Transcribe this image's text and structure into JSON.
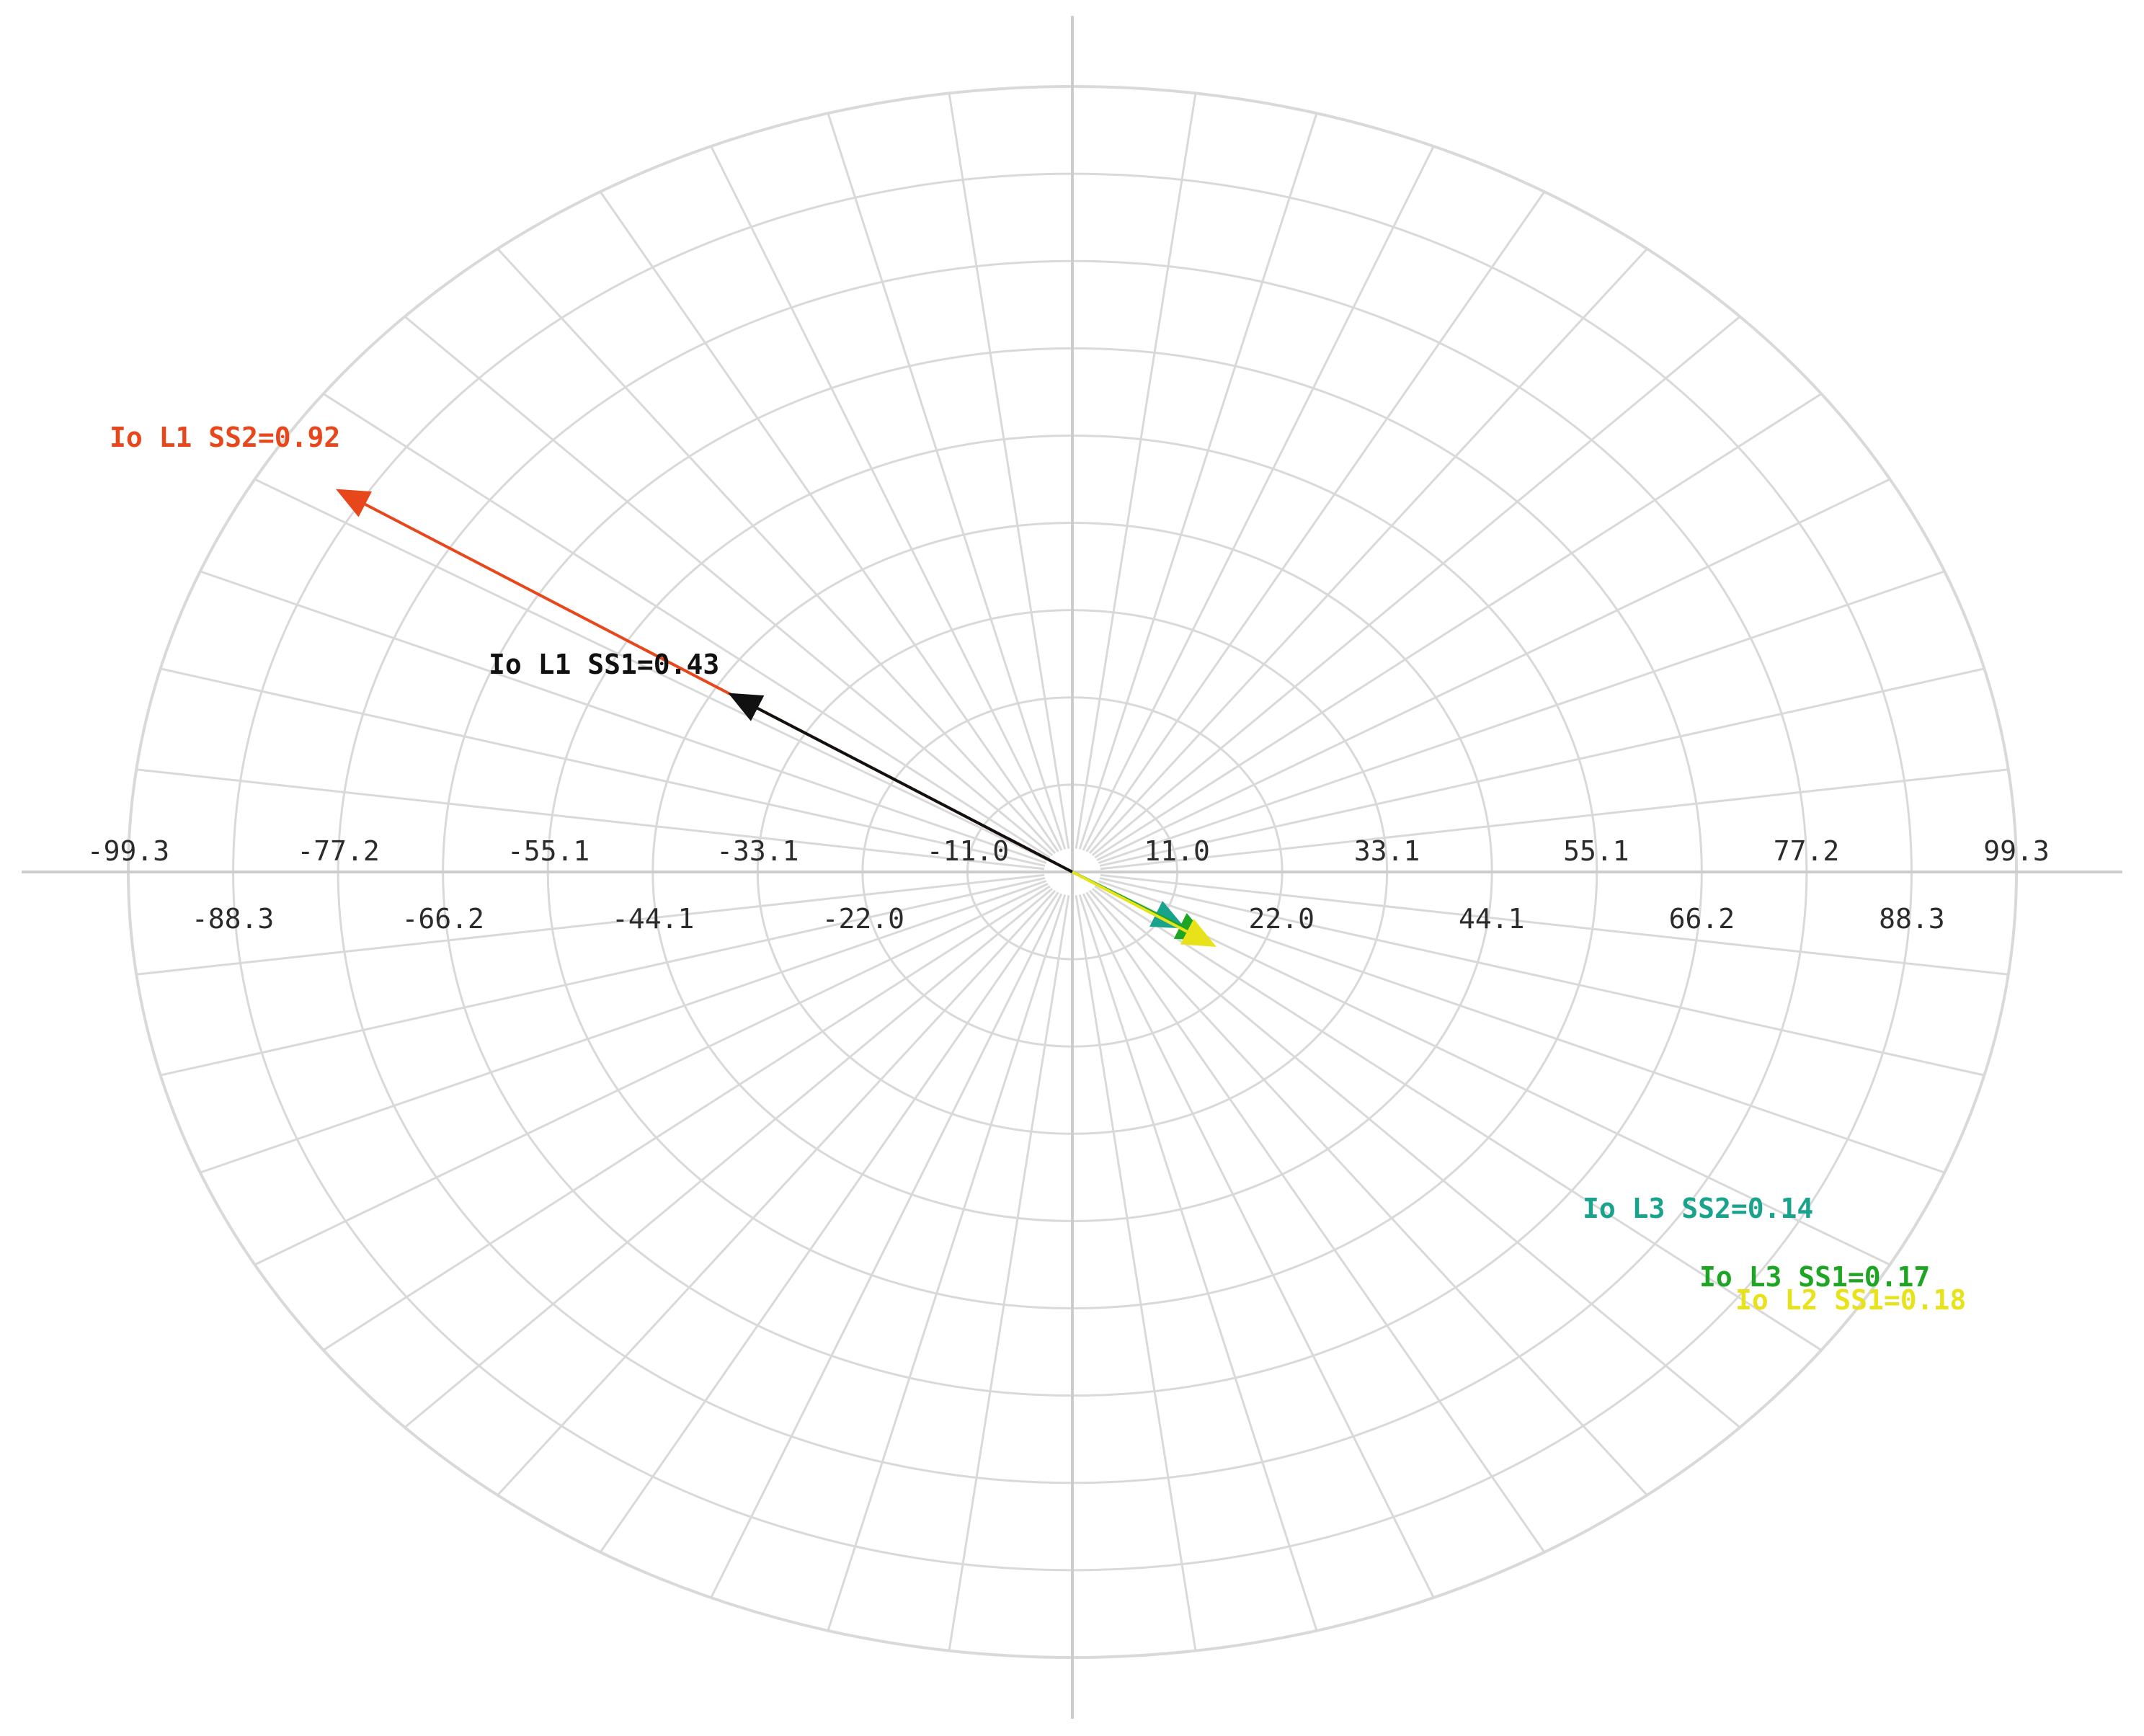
{
  "chart_data": {
    "type": "polar-phasor",
    "title": "",
    "grid": true,
    "radial_max": 99.3,
    "ring_count": 9,
    "spoke_count": 48,
    "ticks_row1": [
      "-99.3",
      "-77.2",
      "-55.1",
      "-33.1",
      "-11.0",
      "11.0",
      "33.1",
      "55.1",
      "77.2",
      "99.3"
    ],
    "ticks_row1_values": [
      -99.3,
      -77.2,
      -55.1,
      -33.1,
      -11.0,
      11.0,
      33.1,
      55.1,
      77.2,
      99.3
    ],
    "ticks_row2": [
      "-88.3",
      "-66.2",
      "-44.1",
      "-22.0",
      "22.0",
      "44.1",
      "66.2",
      "88.3"
    ],
    "ticks_row2_values": [
      -88.3,
      -66.2,
      -44.1,
      -22.0,
      22.0,
      44.1,
      66.2,
      88.3
    ],
    "grid_color": "#d9d9d9",
    "axis_color": "#cccccc",
    "vectors": [
      {
        "label": "Io L1 SS2=0.92",
        "magnitude": 0.92,
        "angle_deg": 148,
        "color": "#e8471c"
      },
      {
        "label": "Io L1 SS1=0.43",
        "magnitude": 0.43,
        "angle_deg": 148,
        "color": "#111111"
      },
      {
        "label": "Io L3 SS2=0.14",
        "magnitude": 0.14,
        "angle_deg": -31,
        "color": "#1aa38c"
      },
      {
        "label": "Io L3 SS1=0.17",
        "magnitude": 0.17,
        "angle_deg": -31,
        "color": "#1fa524"
      },
      {
        "label": "Io L2 SS1=0.18",
        "magnitude": 0.18,
        "angle_deg": -32,
        "color": "#e8e21a"
      }
    ]
  }
}
